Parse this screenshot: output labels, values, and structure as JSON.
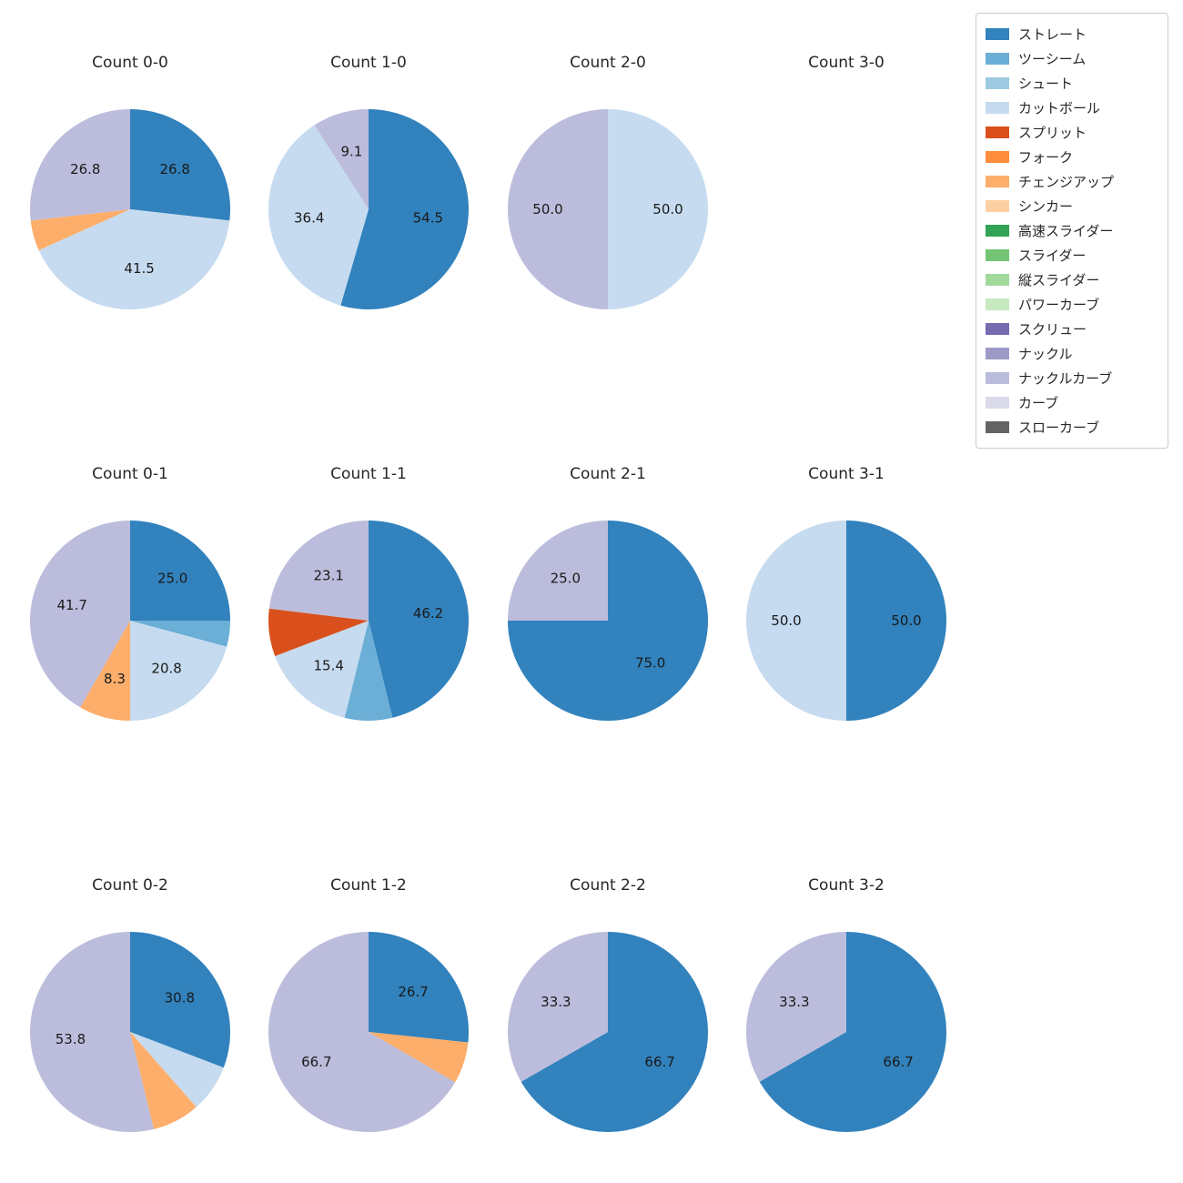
{
  "page": {
    "background": "#ffffff"
  },
  "legend": {
    "items": [
      {
        "label": "ストレート",
        "color": "#3182bd"
      },
      {
        "label": "ツーシーム",
        "color": "#6baed6"
      },
      {
        "label": "シュート",
        "color": "#9ecae1"
      },
      {
        "label": "カットボール",
        "color": "#c6dbef"
      },
      {
        "label": "スプリット",
        "color": "#d9501c"
      },
      {
        "label": "フォーク",
        "color": "#fd8d3c"
      },
      {
        "label": "チェンジアップ",
        "color": "#fdae6b"
      },
      {
        "label": "シンカー",
        "color": "#fdd0a2"
      },
      {
        "label": "高速スライダー",
        "color": "#31a354"
      },
      {
        "label": "スライダー",
        "color": "#74c476"
      },
      {
        "label": "縦スライダー",
        "color": "#a1d99b"
      },
      {
        "label": "パワーカーブ",
        "color": "#c7e9c0"
      },
      {
        "label": "スクリュー",
        "color": "#756bb1"
      },
      {
        "label": "ナックル",
        "color": "#9e9ac8"
      },
      {
        "label": "ナックルカーブ",
        "color": "#bcbddc"
      },
      {
        "label": "カーブ",
        "color": "#dadaeb"
      },
      {
        "label": "スローカーブ",
        "color": "#636363"
      }
    ]
  },
  "chart_data": [
    {
      "type": "pie",
      "title": "Count 0-0",
      "slices": [
        {
          "name": "ストレート",
          "value": 26.8,
          "label": "26.8"
        },
        {
          "name": "カットボール",
          "value": 41.5,
          "label": "41.5"
        },
        {
          "name": "チェンジアップ",
          "value": 4.9,
          "label": ""
        },
        {
          "name": "ナックルカーブ",
          "value": 26.8,
          "label": "26.8"
        }
      ]
    },
    {
      "type": "pie",
      "title": "Count 1-0",
      "slices": [
        {
          "name": "ストレート",
          "value": 54.5,
          "label": "54.5"
        },
        {
          "name": "カットボール",
          "value": 36.4,
          "label": "36.4"
        },
        {
          "name": "ナックルカーブ",
          "value": 9.1,
          "label": "9.1"
        }
      ]
    },
    {
      "type": "pie",
      "title": "Count 2-0",
      "slices": [
        {
          "name": "カットボール",
          "value": 50.0,
          "label": "50.0"
        },
        {
          "name": "ナックルカーブ",
          "value": 50.0,
          "label": "50.0"
        }
      ]
    },
    {
      "type": "pie",
      "title": "Count 3-0",
      "slices": []
    },
    {
      "type": "pie",
      "title": "Count 0-1",
      "slices": [
        {
          "name": "ストレート",
          "value": 25.0,
          "label": "25.0"
        },
        {
          "name": "ツーシーム",
          "value": 4.2,
          "label": ""
        },
        {
          "name": "カットボール",
          "value": 20.8,
          "label": "20.8"
        },
        {
          "name": "チェンジアップ",
          "value": 8.3,
          "label": "8.3"
        },
        {
          "name": "ナックルカーブ",
          "value": 41.7,
          "label": "41.7"
        }
      ]
    },
    {
      "type": "pie",
      "title": "Count 1-1",
      "slices": [
        {
          "name": "ストレート",
          "value": 46.2,
          "label": "46.2"
        },
        {
          "name": "ツーシーム",
          "value": 7.7,
          "label": ""
        },
        {
          "name": "カットボール",
          "value": 15.4,
          "label": "15.4"
        },
        {
          "name": "スプリット",
          "value": 7.7,
          "label": ""
        },
        {
          "name": "ナックルカーブ",
          "value": 23.1,
          "label": "23.1"
        }
      ]
    },
    {
      "type": "pie",
      "title": "Count 2-1",
      "slices": [
        {
          "name": "ストレート",
          "value": 75.0,
          "label": "75.0"
        },
        {
          "name": "ナックルカーブ",
          "value": 25.0,
          "label": "25.0"
        }
      ]
    },
    {
      "type": "pie",
      "title": "Count 3-1",
      "slices": [
        {
          "name": "ストレート",
          "value": 50.0,
          "label": "50.0"
        },
        {
          "name": "カットボール",
          "value": 50.0,
          "label": "50.0"
        }
      ]
    },
    {
      "type": "pie",
      "title": "Count 0-2",
      "slices": [
        {
          "name": "ストレート",
          "value": 30.8,
          "label": "30.8"
        },
        {
          "name": "カットボール",
          "value": 7.7,
          "label": ""
        },
        {
          "name": "チェンジアップ",
          "value": 7.7,
          "label": ""
        },
        {
          "name": "ナックルカーブ",
          "value": 53.8,
          "label": "53.8"
        }
      ]
    },
    {
      "type": "pie",
      "title": "Count 1-2",
      "slices": [
        {
          "name": "ストレート",
          "value": 26.7,
          "label": "26.7"
        },
        {
          "name": "チェンジアップ",
          "value": 6.7,
          "label": ""
        },
        {
          "name": "ナックルカーブ",
          "value": 66.7,
          "label": "66.7"
        }
      ]
    },
    {
      "type": "pie",
      "title": "Count 2-2",
      "slices": [
        {
          "name": "ストレート",
          "value": 66.7,
          "label": "66.7"
        },
        {
          "name": "ナックルカーブ",
          "value": 33.3,
          "label": "33.3"
        }
      ]
    },
    {
      "type": "pie",
      "title": "Count 3-2",
      "slices": [
        {
          "name": "ストレート",
          "value": 66.7,
          "label": "66.7"
        },
        {
          "name": "ナックルカーブ",
          "value": 33.3,
          "label": "33.3"
        }
      ]
    }
  ]
}
